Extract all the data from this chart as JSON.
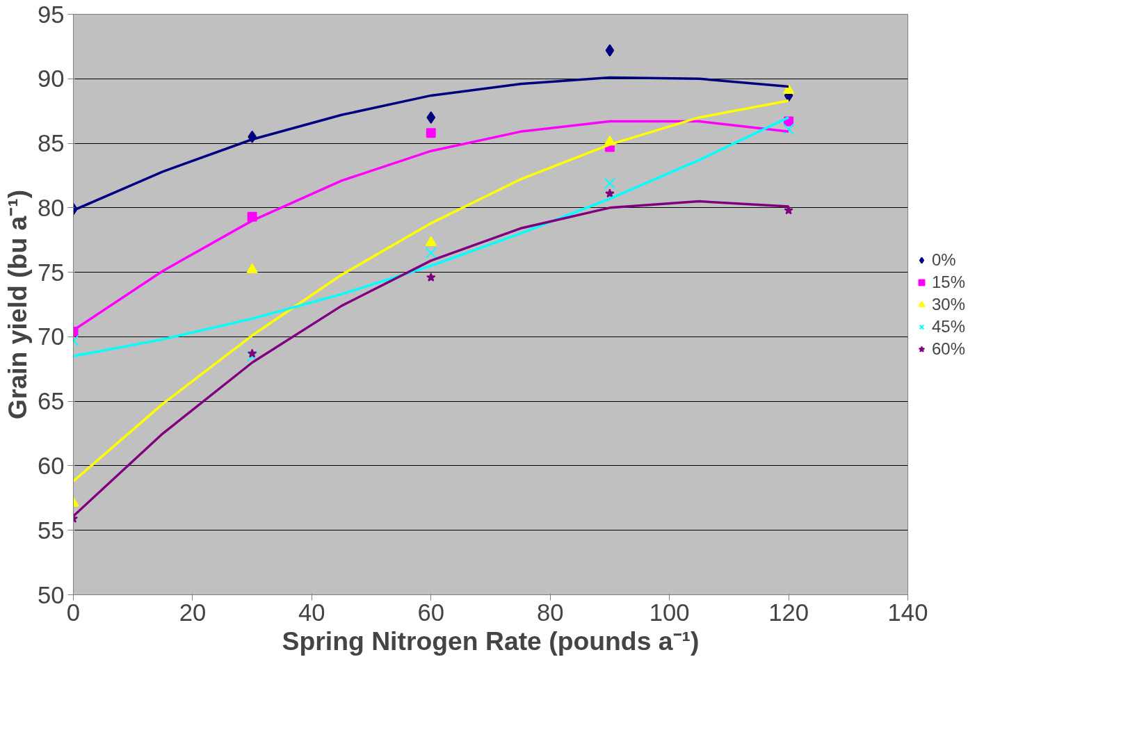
{
  "chart_data": {
    "type": "scatter",
    "xlabel": "Spring Nitrogen Rate (pounds a⁻¹)",
    "ylabel": "Grain yield (bu a⁻¹)",
    "x": [
      0,
      30,
      60,
      90,
      120
    ],
    "xlim": [
      0,
      140
    ],
    "xticks": [
      0,
      20,
      40,
      60,
      80,
      100,
      120,
      140
    ],
    "ylim": [
      50,
      95
    ],
    "yticks": [
      50,
      55,
      60,
      65,
      70,
      75,
      80,
      85,
      90,
      95
    ],
    "grid": "y",
    "legend": "right",
    "series": [
      {
        "name": "0%",
        "color": "#000080",
        "marker": "diamond",
        "values": [
          79.9,
          85.5,
          87.0,
          92.2,
          88.7
        ]
      },
      {
        "name": "15%",
        "color": "#ff00ff",
        "marker": "square",
        "values": [
          70.4,
          79.3,
          85.8,
          84.7,
          86.7
        ]
      },
      {
        "name": "30%",
        "color": "#ffff00",
        "marker": "triangle",
        "values": [
          57.1,
          75.2,
          77.3,
          85.1,
          89.1
        ]
      },
      {
        "name": "45%",
        "color": "#00ffff",
        "marker": "cross",
        "values": [
          69.7,
          68.5,
          76.5,
          81.9,
          86.1
        ]
      },
      {
        "name": "60%",
        "color": "#800080",
        "marker": "star",
        "values": [
          55.9,
          68.7,
          74.6,
          81.1,
          79.8
        ]
      },
      {
        "type": "line",
        "color": "#000080",
        "x": [
          0,
          15,
          30,
          45,
          60,
          75,
          90,
          105,
          120
        ],
        "values": [
          79.8,
          82.8,
          85.3,
          87.2,
          88.7,
          89.6,
          90.1,
          90.0,
          89.4
        ]
      },
      {
        "type": "line",
        "color": "#ff00ff",
        "x": [
          0,
          15,
          30,
          45,
          60,
          75,
          90,
          105,
          120
        ],
        "values": [
          70.5,
          75.1,
          79.0,
          82.1,
          84.4,
          85.9,
          86.7,
          86.7,
          85.9
        ]
      },
      {
        "type": "line",
        "color": "#ffff00",
        "x": [
          0,
          15,
          30,
          45,
          60,
          75,
          90,
          105,
          120
        ],
        "values": [
          58.8,
          64.8,
          70.1,
          74.8,
          78.8,
          82.2,
          84.9,
          87.0,
          88.3
        ]
      },
      {
        "type": "line",
        "color": "#00ffff",
        "x": [
          0,
          15,
          30,
          45,
          60,
          75,
          90,
          105,
          120
        ],
        "values": [
          68.5,
          69.8,
          71.4,
          73.3,
          75.5,
          78.0,
          80.7,
          83.7,
          87.0
        ]
      },
      {
        "type": "line",
        "color": "#800080",
        "x": [
          0,
          15,
          30,
          45,
          60,
          75,
          90,
          105,
          120
        ],
        "values": [
          56.1,
          62.5,
          68.0,
          72.4,
          75.9,
          78.4,
          80.0,
          80.5,
          80.1
        ]
      }
    ]
  }
}
